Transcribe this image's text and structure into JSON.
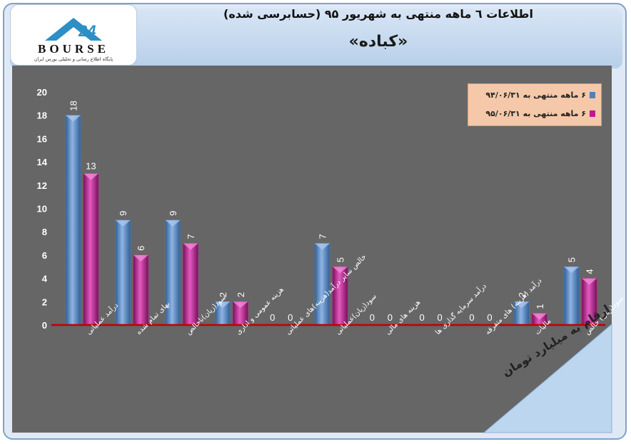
{
  "header": {
    "title": "اطلاعات ٦ ماهه منتهی به شهریور ۹۵ (حسابرسی شده)",
    "company": "«کباده»"
  },
  "logo": {
    "brand": "BOURSE",
    "tagline": "پایگاه اطلاع رسانی و تحلیلی بورس ایران"
  },
  "units_label": "ارقام به میلیارد تومان",
  "colors": {
    "series1": "#4f81bd",
    "series2": "#c0198f",
    "axis_line": "#c00000",
    "plot_bg": "#666666"
  },
  "chart_data": {
    "type": "bar",
    "categories": [
      "درآمد عملیاتی",
      "بهای تمام شده",
      "سود(زیان)ناخالص",
      "هزینه عمومی و اداری",
      "خالص سایر درآمد(هزینه)های عملیاتی",
      "سود(زیان)عملیاتی",
      "هزینه های مالی",
      "درآمد سرمایه گذاری ها",
      "درآمد (هزینه) های متفرقه",
      "مالیات",
      "سود(زیان) خالص"
    ],
    "series": [
      {
        "name": "۶ ماهه منتهی به ۹۴/۰۶/۳۱",
        "values": [
          18,
          9,
          9,
          2,
          0,
          7,
          0,
          0,
          0,
          2,
          5
        ]
      },
      {
        "name": "۶ ماهه منتهی به ۹۵/۰۶/۳۱",
        "values": [
          13,
          6,
          7,
          2,
          0,
          5,
          0,
          0,
          0,
          1,
          4
        ]
      }
    ],
    "data_labels": [
      [
        "18",
        "9",
        "9",
        "2",
        "0",
        "7",
        "0",
        "0",
        "0",
        "2",
        "5"
      ],
      [
        "13",
        "6",
        "7",
        "2",
        "0",
        "5",
        "0",
        "0",
        "0",
        "1",
        "4"
      ]
    ],
    "yticks": [
      "0",
      "2",
      "4",
      "6",
      "8",
      "10",
      "12",
      "14",
      "16",
      "18",
      "20"
    ],
    "ylim": [
      0,
      20
    ],
    "grid": false,
    "legend_position": "top-right"
  }
}
